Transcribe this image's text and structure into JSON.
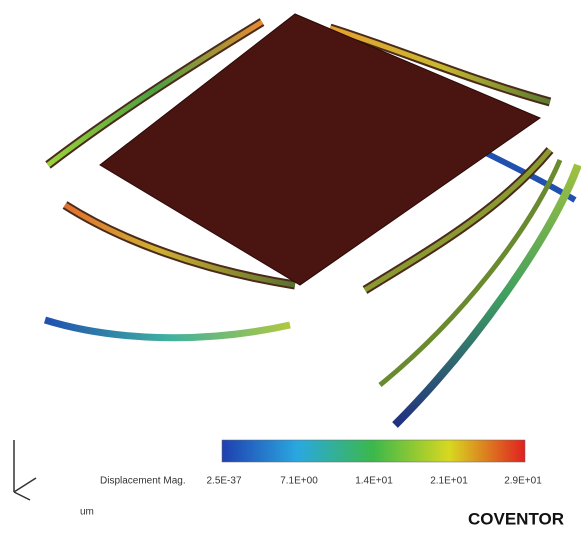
{
  "colorbar": {
    "title": "Displacement Mag.",
    "labels": [
      "2.5E-37",
      "7.1E+00",
      "1.4E+01",
      "2.1E+01",
      "2.9E+01"
    ],
    "unit": "um"
  },
  "brand": "COVENTOR"
}
